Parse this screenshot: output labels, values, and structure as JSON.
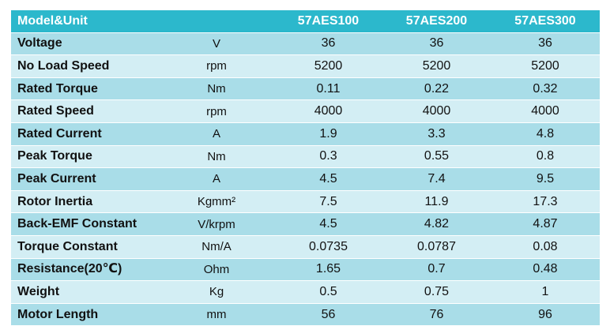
{
  "header": {
    "param": "Model&Unit",
    "unit": "",
    "models": [
      "57AES100",
      "57AES200",
      "57AES300"
    ]
  },
  "rows": [
    {
      "param": "Voltage",
      "unit": "V",
      "values": [
        "36",
        "36",
        "36"
      ]
    },
    {
      "param": "No Load Speed",
      "unit": "rpm",
      "values": [
        "5200",
        "5200",
        "5200"
      ]
    },
    {
      "param": "Rated Torque",
      "unit": "Nm",
      "values": [
        "0.11",
        "0.22",
        "0.32"
      ]
    },
    {
      "param": "Rated Speed",
      "unit": "rpm",
      "values": [
        "4000",
        "4000",
        "4000"
      ]
    },
    {
      "param": "Rated Current",
      "unit": "A",
      "values": [
        "1.9",
        "3.3",
        "4.8"
      ]
    },
    {
      "param": "Peak Torque",
      "unit": "Nm",
      "values": [
        "0.3",
        "0.55",
        "0.8"
      ]
    },
    {
      "param": "Peak Current",
      "unit": "A",
      "values": [
        "4.5",
        "7.4",
        "9.5"
      ]
    },
    {
      "param": "Rotor Inertia",
      "unit": "Kgmm²",
      "values": [
        "7.5",
        "11.9",
        "17.3"
      ]
    },
    {
      "param": "Back-EMF Constant",
      "unit": "V/krpm",
      "values": [
        "4.5",
        "4.82",
        "4.87"
      ]
    },
    {
      "param": "Torque Constant",
      "unit": "Nm/A",
      "values": [
        "0.0735",
        "0.0787",
        "0.08"
      ]
    },
    {
      "param": "Resistance(20℃)",
      "unit": "Ohm",
      "values": [
        "1.65",
        "0.7",
        "0.48"
      ]
    },
    {
      "param": "Weight",
      "unit": "Kg",
      "values": [
        "0.5",
        "0.75",
        "1"
      ]
    },
    {
      "param": "Motor Length",
      "unit": "mm",
      "values": [
        "56",
        "76",
        "96"
      ]
    }
  ],
  "colors": {
    "header_bg": "#2cb8cc",
    "row_odd_bg": "#a9dde8",
    "row_even_bg": "#d3eef4"
  }
}
